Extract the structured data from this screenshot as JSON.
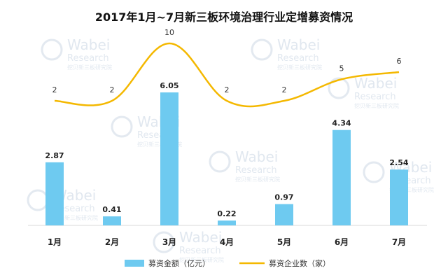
{
  "chart_data": {
    "type": "bar",
    "title": "2017年1月~7月新三板环境治理行业定增募资情况",
    "categories": [
      "1月",
      "2月",
      "3月",
      "4月",
      "5月",
      "6月",
      "7月"
    ],
    "series": [
      {
        "name": "募资金额（亿元）",
        "type": "bar",
        "values": [
          2.87,
          0.41,
          6.05,
          0.22,
          0.97,
          4.34,
          2.54
        ],
        "color": "#6ecaf0"
      },
      {
        "name": "募资企业数（家）",
        "type": "line",
        "values": [
          2,
          2,
          10,
          2,
          2,
          5,
          6
        ],
        "color": "#f4b800"
      }
    ],
    "legend_position": "bottom",
    "grid": false
  },
  "watermark": {
    "brand": "Wabei",
    "sub": "Research",
    "cn": "挖贝新三板研究院"
  }
}
